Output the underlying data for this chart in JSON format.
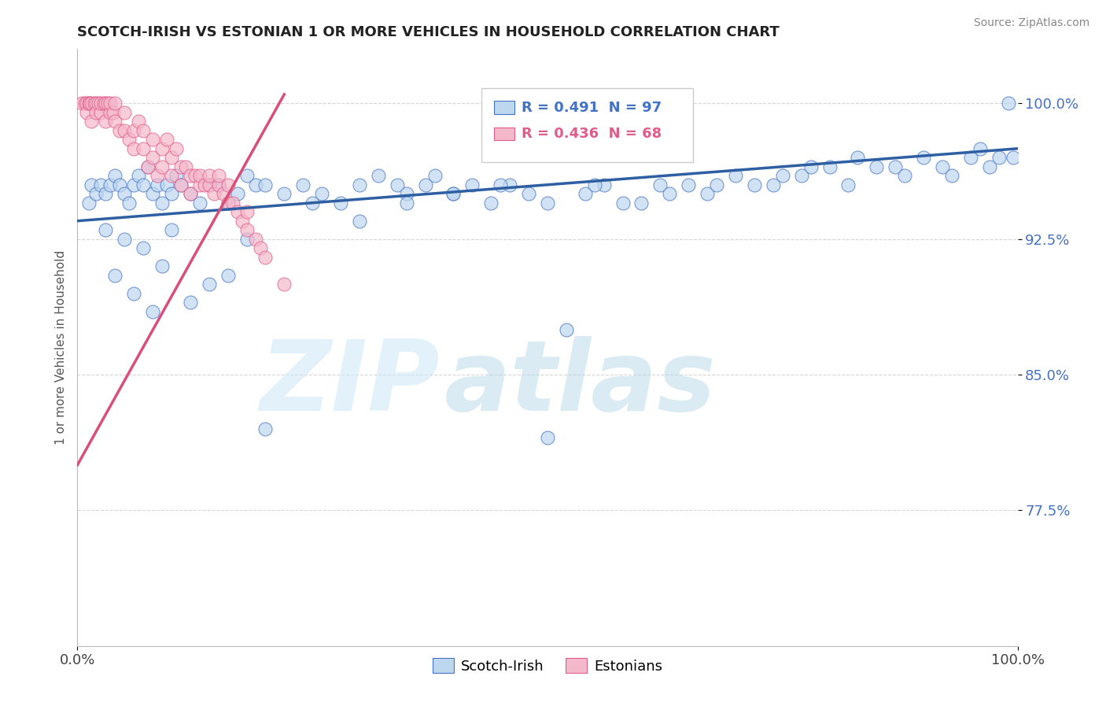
{
  "title": "SCOTCH-IRISH VS ESTONIAN 1 OR MORE VEHICLES IN HOUSEHOLD CORRELATION CHART",
  "source_text": "Source: ZipAtlas.com",
  "ylabel": "1 or more Vehicles in Household",
  "xlim": [
    0,
    100
  ],
  "ylim": [
    70,
    103
  ],
  "yticks": [
    77.5,
    85.0,
    92.5,
    100.0
  ],
  "xticklabels": [
    "0.0%",
    "100.0%"
  ],
  "yticklabels": [
    "77.5%",
    "85.0%",
    "92.5%",
    "100.0%"
  ],
  "watermark_zip": "ZIP",
  "watermark_atlas": "atlas",
  "legend_r_blue": "R = 0.491",
  "legend_n_blue": "N = 97",
  "legend_r_pink": "R = 0.436",
  "legend_n_pink": "N = 68",
  "blue_fill": "#bdd7ee",
  "pink_fill": "#f4b8cb",
  "blue_edge": "#4472c4",
  "pink_edge": "#e05c8a",
  "blue_line": "#2e5fa3",
  "pink_line": "#d94f7a",
  "scotch_irish_x": [
    1.2,
    1.5,
    2.0,
    2.5,
    3.0,
    3.5,
    4.0,
    4.5,
    5.0,
    5.5,
    6.0,
    6.5,
    7.0,
    7.5,
    8.0,
    8.5,
    9.0,
    9.5,
    10.0,
    10.5,
    11.0,
    12.0,
    13.0,
    14.0,
    15.0,
    16.0,
    17.0,
    18.0,
    19.0,
    20.0,
    22.0,
    24.0,
    26.0,
    28.0,
    30.0,
    32.0,
    34.0,
    35.0,
    37.0,
    38.0,
    40.0,
    42.0,
    44.0,
    46.0,
    48.0,
    50.0,
    52.0,
    54.0,
    56.0,
    58.0,
    60.0,
    62.0,
    63.0,
    65.0,
    67.0,
    68.0,
    70.0,
    72.0,
    74.0,
    75.0,
    77.0,
    78.0,
    80.0,
    82.0,
    83.0,
    85.0,
    87.0,
    88.0,
    90.0,
    92.0,
    93.0,
    95.0,
    96.0,
    97.0,
    98.0,
    99.0,
    99.5,
    3.0,
    4.0,
    5.0,
    6.0,
    7.0,
    8.0,
    9.0,
    10.0,
    12.0,
    14.0,
    16.0,
    18.0,
    20.0,
    25.0,
    30.0,
    35.0,
    40.0,
    45.0,
    50.0,
    55.0
  ],
  "scotch_irish_y": [
    94.5,
    95.5,
    95.0,
    95.5,
    95.0,
    95.5,
    96.0,
    95.5,
    95.0,
    94.5,
    95.5,
    96.0,
    95.5,
    96.5,
    95.0,
    95.5,
    94.5,
    95.5,
    95.0,
    96.0,
    95.5,
    95.0,
    94.5,
    95.5,
    95.5,
    94.5,
    95.0,
    96.0,
    95.5,
    95.5,
    95.0,
    95.5,
    95.0,
    94.5,
    95.5,
    96.0,
    95.5,
    95.0,
    95.5,
    96.0,
    95.0,
    95.5,
    94.5,
    95.5,
    95.0,
    94.5,
    87.5,
    95.0,
    95.5,
    94.5,
    94.5,
    95.5,
    95.0,
    95.5,
    95.0,
    95.5,
    96.0,
    95.5,
    95.5,
    96.0,
    96.0,
    96.5,
    96.5,
    95.5,
    97.0,
    96.5,
    96.5,
    96.0,
    97.0,
    96.5,
    96.0,
    97.0,
    97.5,
    96.5,
    97.0,
    100.0,
    97.0,
    93.0,
    90.5,
    92.5,
    89.5,
    92.0,
    88.5,
    91.0,
    93.0,
    89.0,
    90.0,
    90.5,
    92.5,
    82.0,
    94.5,
    93.5,
    94.5,
    95.0,
    95.5,
    81.5,
    95.5
  ],
  "estonian_x": [
    0.5,
    0.8,
    1.0,
    1.0,
    1.2,
    1.3,
    1.5,
    1.5,
    1.8,
    2.0,
    2.0,
    2.2,
    2.5,
    2.5,
    2.8,
    3.0,
    3.0,
    3.2,
    3.5,
    3.5,
    3.8,
    4.0,
    4.0,
    4.5,
    5.0,
    5.0,
    5.5,
    6.0,
    6.0,
    6.5,
    7.0,
    7.0,
    7.5,
    8.0,
    8.0,
    8.5,
    9.0,
    9.0,
    9.5,
    10.0,
    10.0,
    10.5,
    11.0,
    11.0,
    11.5,
    12.0,
    12.0,
    12.5,
    13.0,
    13.0,
    13.5,
    14.0,
    14.0,
    14.5,
    15.0,
    15.0,
    15.5,
    16.0,
    16.0,
    16.5,
    17.0,
    17.5,
    18.0,
    18.0,
    19.0,
    19.5,
    20.0,
    22.0
  ],
  "estonian_y": [
    100.0,
    100.0,
    100.0,
    99.5,
    100.0,
    100.0,
    100.0,
    99.0,
    100.0,
    100.0,
    99.5,
    100.0,
    99.5,
    100.0,
    100.0,
    100.0,
    99.0,
    100.0,
    99.5,
    100.0,
    99.5,
    99.0,
    100.0,
    98.5,
    99.5,
    98.5,
    98.0,
    98.5,
    97.5,
    99.0,
    97.5,
    98.5,
    96.5,
    97.0,
    98.0,
    96.0,
    97.5,
    96.5,
    98.0,
    97.0,
    96.0,
    97.5,
    96.5,
    95.5,
    96.5,
    96.0,
    95.0,
    96.0,
    95.5,
    96.0,
    95.5,
    95.5,
    96.0,
    95.0,
    95.5,
    96.0,
    95.0,
    94.5,
    95.5,
    94.5,
    94.0,
    93.5,
    94.0,
    93.0,
    92.5,
    92.0,
    91.5,
    90.0
  ],
  "blue_trendline_x": [
    0,
    100
  ],
  "blue_trendline_y": [
    93.5,
    97.5
  ],
  "pink_trendline_x": [
    0,
    22
  ],
  "pink_trendline_y": [
    80.0,
    100.5
  ]
}
